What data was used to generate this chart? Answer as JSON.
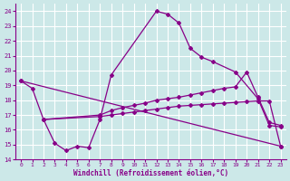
{
  "background_color": "#cce8e8",
  "grid_color": "#b8d8d8",
  "line_color": "#880088",
  "xlabel": "Windchill (Refroidissement éolien,°C)",
  "xlim_min": -0.5,
  "xlim_max": 23.5,
  "ylim_min": 14,
  "ylim_max": 24.5,
  "xticks": [
    0,
    1,
    2,
    3,
    4,
    5,
    6,
    7,
    8,
    9,
    10,
    11,
    12,
    13,
    14,
    15,
    16,
    17,
    18,
    19,
    20,
    21,
    22,
    23
  ],
  "yticks": [
    14,
    15,
    16,
    17,
    18,
    19,
    20,
    21,
    22,
    23,
    24
  ],
  "curve1_x": [
    0,
    1,
    2,
    3,
    4,
    5,
    6,
    7,
    8,
    12,
    13,
    14,
    15,
    16,
    17,
    19,
    21,
    22,
    23
  ],
  "curve1_y": [
    19.3,
    18.8,
    16.7,
    15.1,
    14.6,
    14.9,
    14.8,
    16.7,
    19.7,
    24.0,
    23.8,
    23.2,
    21.5,
    20.9,
    20.6,
    19.9,
    18.1,
    16.3,
    16.2
  ],
  "curve2_x": [
    0,
    23
  ],
  "curve2_y": [
    19.3,
    14.9
  ],
  "curve3_x": [
    2,
    7,
    8,
    9,
    10,
    11,
    12,
    13,
    14,
    15,
    16,
    17,
    18,
    19,
    20,
    21,
    22,
    23
  ],
  "curve3_y": [
    16.7,
    17.0,
    17.3,
    17.5,
    17.65,
    17.8,
    18.0,
    18.1,
    18.2,
    18.35,
    18.5,
    18.65,
    18.8,
    18.9,
    19.9,
    18.2,
    16.5,
    16.3
  ],
  "curve4_x": [
    2,
    7,
    8,
    9,
    10,
    11,
    12,
    13,
    14,
    15,
    16,
    17,
    18,
    19,
    20,
    21,
    22,
    23
  ],
  "curve4_y": [
    16.7,
    16.9,
    17.0,
    17.1,
    17.2,
    17.3,
    17.4,
    17.5,
    17.6,
    17.65,
    17.7,
    17.75,
    17.8,
    17.85,
    17.9,
    17.95,
    17.95,
    14.9
  ]
}
